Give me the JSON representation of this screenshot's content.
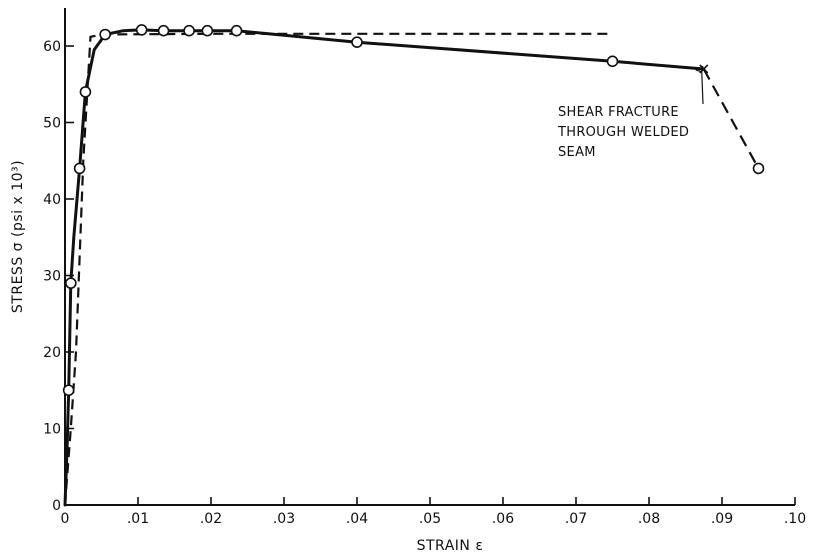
{
  "chart_data": {
    "type": "line",
    "title": "",
    "xlabel": "STRAIN ε",
    "ylabel": "STRESS σ (psi x 10³)",
    "xlim": [
      0,
      0.1
    ],
    "ylim": [
      0,
      65
    ],
    "x_ticks": [
      0,
      0.01,
      0.02,
      0.03,
      0.04,
      0.05,
      0.06,
      0.07,
      0.08,
      0.09,
      0.1
    ],
    "x_tick_labels": [
      "0",
      ".01",
      ".02",
      ".03",
      ".04",
      ".05",
      ".06",
      ".07",
      ".08",
      ".09",
      ".10"
    ],
    "y_ticks": [
      0,
      10,
      20,
      30,
      40,
      50,
      60
    ],
    "y_tick_labels": [
      "0",
      "10",
      "20",
      "30",
      "40",
      "50",
      "60"
    ],
    "grid": false,
    "series": [
      {
        "style": "solid",
        "points": [
          [
            0,
            0
          ],
          [
            0.0003,
            8
          ],
          [
            0.0005,
            15
          ],
          [
            0.0008,
            29
          ],
          [
            0.0012,
            35
          ],
          [
            0.002,
            44
          ],
          [
            0.0028,
            54
          ],
          [
            0.004,
            59.5
          ],
          [
            0.0055,
            61.5
          ],
          [
            0.008,
            62
          ],
          [
            0.0105,
            62.1
          ],
          [
            0.0135,
            62
          ],
          [
            0.017,
            62
          ],
          [
            0.0195,
            62
          ],
          [
            0.0235,
            62
          ],
          [
            0.04,
            60.5
          ],
          [
            0.075,
            58
          ],
          [
            0.0875,
            57
          ]
        ]
      },
      {
        "style": "dashed",
        "points": [
          [
            0,
            0
          ],
          [
            0.0008,
            10
          ],
          [
            0.0015,
            20
          ],
          [
            0.0025,
            45
          ],
          [
            0.0035,
            61.2
          ],
          [
            0.005,
            61.5
          ],
          [
            0.02,
            61.6
          ],
          [
            0.04,
            61.6
          ],
          [
            0.075,
            61.6
          ]
        ]
      },
      {
        "style": "dashed",
        "points": [
          [
            0.0875,
            57
          ],
          [
            0.095,
            44
          ]
        ]
      }
    ],
    "markers": {
      "circles": [
        [
          0.0005,
          15
        ],
        [
          0.0008,
          29
        ],
        [
          0.002,
          44
        ],
        [
          0.0028,
          54
        ],
        [
          0.0055,
          61.5
        ],
        [
          0.0105,
          62.1
        ],
        [
          0.0135,
          62
        ],
        [
          0.017,
          62
        ],
        [
          0.0195,
          62
        ],
        [
          0.0235,
          62
        ],
        [
          0.04,
          60.5
        ],
        [
          0.075,
          58
        ],
        [
          0.095,
          44
        ]
      ],
      "fracture_point": [
        0.0875,
        57
      ]
    },
    "annotations": [
      {
        "lines": [
          "SHEAR FRACTURE",
          "THROUGH WELDED",
          "SEAM"
        ],
        "points_to": [
          0.0875,
          57
        ]
      }
    ]
  }
}
